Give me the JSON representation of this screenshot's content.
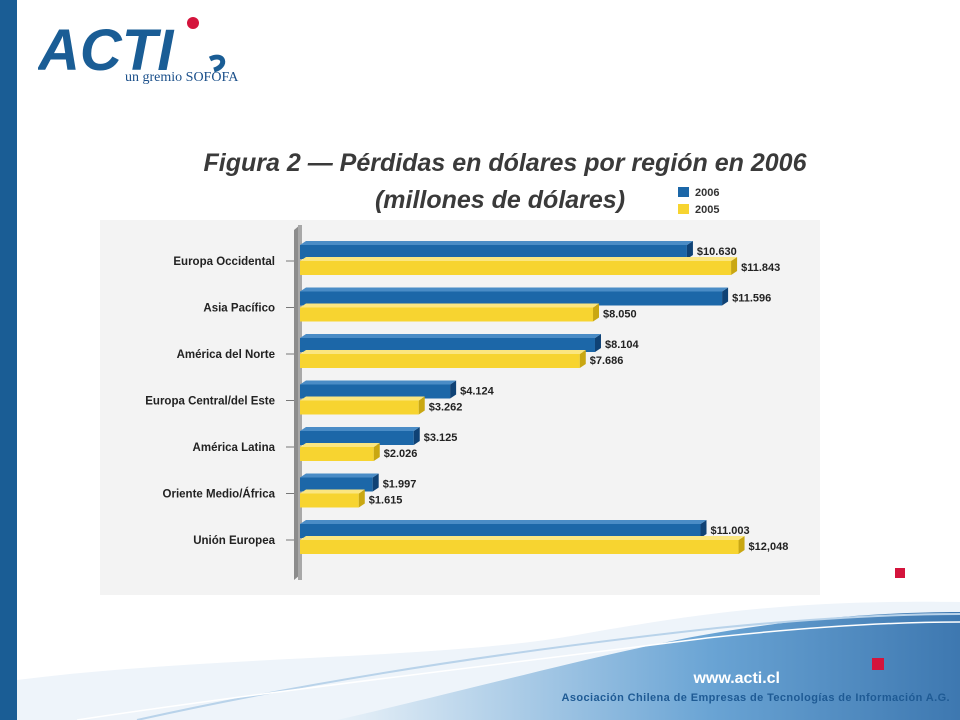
{
  "logo": {
    "text": "ACTI",
    "subtitle": "un gremio SOFOFA"
  },
  "footer": {
    "url": "www.acti.cl",
    "organization": "Asociación Chilena de Empresas de Tecnologías de Información A.G."
  },
  "colors": {
    "series_2006": "#1c67a8",
    "series_2005": "#f7d430",
    "accent": "#d4143c",
    "brand_blue": "#1a5d95"
  },
  "chart_data": {
    "type": "bar",
    "orientation": "horizontal",
    "title": "Figura 2 — Pérdidas en dólares por región en 2006",
    "subtitle": "(millones de dólares)",
    "categories": [
      "Europa Occidental",
      "Asia Pacífico",
      "América del Norte",
      "Europa Central/del Este",
      "América Latina",
      "Oriente Medio/África",
      "Unión Europea"
    ],
    "series": [
      {
        "name": "2006",
        "values": [
          10630,
          11596,
          8104,
          4124,
          3125,
          1997,
          11003
        ],
        "labels": [
          "$10.630",
          "$11.596",
          "$8.104",
          "$4.124",
          "$3.125",
          "$1.997",
          "$11.003"
        ]
      },
      {
        "name": "2005",
        "values": [
          11843,
          8050,
          7686,
          3262,
          2026,
          1615,
          12048
        ],
        "labels": [
          "$11.843",
          "$8.050",
          "$7.686",
          "$3.262",
          "$2.026",
          "$1.615",
          "$12,048"
        ]
      }
    ],
    "legend_position": "top-right",
    "grid": false
  }
}
